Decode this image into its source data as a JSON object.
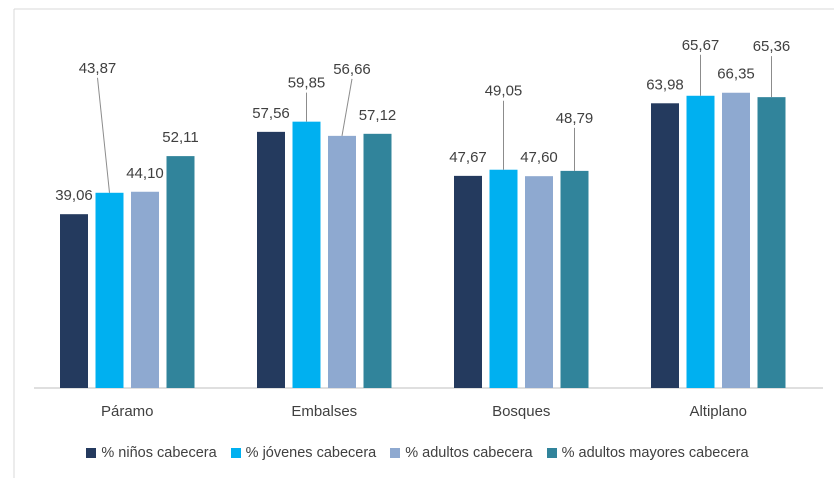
{
  "chart_data": {
    "type": "bar",
    "categories": [
      "Páramo",
      "Embalses",
      "Bosques",
      "Altiplano"
    ],
    "series": [
      {
        "name": "% niños cabecera",
        "color": "#243a5e",
        "values": [
          39.06,
          57.56,
          47.67,
          63.98
        ],
        "labels": [
          "39,06",
          "57,56",
          "47,67",
          "63,98"
        ]
      },
      {
        "name": "% jóvenes cabecera",
        "color": "#00b0f0",
        "values": [
          43.87,
          59.85,
          49.05,
          65.67
        ],
        "labels": [
          "43,87",
          "59,85",
          "49,05",
          "65,67"
        ]
      },
      {
        "name": "% adultos cabecera",
        "color": "#8ea9d0",
        "values": [
          44.1,
          56.66,
          47.6,
          66.35
        ],
        "labels": [
          "44,10",
          "56,66",
          "47,60",
          "66,35"
        ]
      },
      {
        "name": "% adultos mayores cabecera",
        "color": "#31849b",
        "values": [
          52.11,
          57.12,
          48.79,
          65.36
        ],
        "labels": [
          "52,11",
          "57,12",
          "48,79",
          "65,36"
        ]
      }
    ],
    "title": "",
    "xlabel": "",
    "ylabel": "",
    "ylim": [
      0,
      70
    ],
    "grid": false,
    "legend_position": "bottom"
  }
}
